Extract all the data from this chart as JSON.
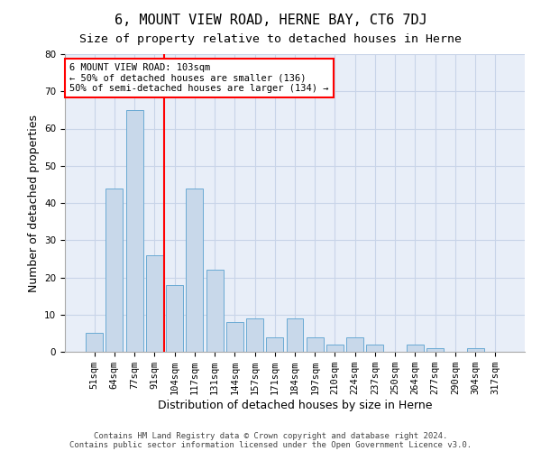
{
  "title": "6, MOUNT VIEW ROAD, HERNE BAY, CT6 7DJ",
  "subtitle": "Size of property relative to detached houses in Herne",
  "xlabel": "Distribution of detached houses by size in Herne",
  "ylabel": "Number of detached properties",
  "footnote1": "Contains HM Land Registry data © Crown copyright and database right 2024.",
  "footnote2": "Contains public sector information licensed under the Open Government Licence v3.0.",
  "bar_labels": [
    "51sqm",
    "64sqm",
    "77sqm",
    "91sqm",
    "104sqm",
    "117sqm",
    "131sqm",
    "144sqm",
    "157sqm",
    "171sqm",
    "184sqm",
    "197sqm",
    "210sqm",
    "224sqm",
    "237sqm",
    "250sqm",
    "264sqm",
    "277sqm",
    "290sqm",
    "304sqm",
    "317sqm"
  ],
  "bar_values": [
    5,
    44,
    65,
    26,
    18,
    44,
    22,
    8,
    9,
    4,
    9,
    4,
    2,
    4,
    2,
    0,
    2,
    1,
    0,
    1,
    0
  ],
  "bar_color": "#c8d8ea",
  "bar_edge_color": "#6aaad4",
  "grid_color": "#c8d4e8",
  "background_color": "#e8eef8",
  "annotation_text": "6 MOUNT VIEW ROAD: 103sqm\n← 50% of detached houses are smaller (136)\n50% of semi-detached houses are larger (134) →",
  "annotation_box_color": "red",
  "vline_x_index": 3.5,
  "ylim": [
    0,
    80
  ],
  "yticks": [
    0,
    10,
    20,
    30,
    40,
    50,
    60,
    70,
    80
  ],
  "title_fontsize": 11,
  "subtitle_fontsize": 9.5,
  "xlabel_fontsize": 9,
  "ylabel_fontsize": 9,
  "tick_fontsize": 7.5,
  "annot_fontsize": 7.5,
  "footnote_fontsize": 6.5
}
